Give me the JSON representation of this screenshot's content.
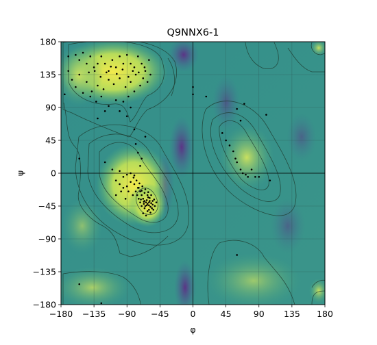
{
  "chart_data": {
    "type": "scatter",
    "title": "Q9NNX6-1",
    "xlabel": "φ",
    "ylabel": "ψ",
    "xlim": [
      -180,
      180
    ],
    "ylim": [
      -180,
      180
    ],
    "xticks": [
      -180,
      -135,
      -90,
      -45,
      0,
      45,
      90,
      135,
      180
    ],
    "yticks": [
      -180,
      -135,
      -90,
      -45,
      0,
      45,
      90,
      135,
      180
    ],
    "xtick_labels": [
      "−180",
      "−135",
      "−90",
      "−45",
      "0",
      "45",
      "90",
      "135",
      "180"
    ],
    "ytick_labels": [
      "−180",
      "−135",
      "−90",
      "−45",
      "0",
      "45",
      "90",
      "135",
      "180"
    ],
    "grid": true,
    "background": "density heatmap (viridis) with contour lines",
    "colors": {
      "low": "#5a2d82",
      "mid": "#3d9a8c",
      "high": "#e6e65a",
      "points": "#000000"
    },
    "points": [
      [
        -170,
        160
      ],
      [
        -160,
        162
      ],
      [
        -155,
        155
      ],
      [
        -150,
        165
      ],
      [
        -145,
        150
      ],
      [
        -140,
        160
      ],
      [
        -135,
        145
      ],
      [
        -130,
        150
      ],
      [
        -125,
        160
      ],
      [
        -120,
        150
      ],
      [
        -115,
        140
      ],
      [
        -110,
        155
      ],
      [
        -105,
        145
      ],
      [
        -100,
        160
      ],
      [
        -95,
        150
      ],
      [
        -90,
        162
      ],
      [
        -85,
        150
      ],
      [
        -80,
        145
      ],
      [
        -75,
        160
      ],
      [
        -70,
        150
      ],
      [
        -65,
        140
      ],
      [
        -60,
        155
      ],
      [
        -68,
        130
      ],
      [
        -72,
        120
      ],
      [
        -78,
        135
      ],
      [
        -85,
        125
      ],
      [
        -92,
        118
      ],
      [
        -100,
        130
      ],
      [
        -108,
        122
      ],
      [
        -115,
        128
      ],
      [
        -122,
        115
      ],
      [
        -130,
        120
      ],
      [
        -138,
        112
      ],
      [
        -145,
        125
      ],
      [
        -150,
        110
      ],
      [
        -155,
        135
      ],
      [
        -160,
        118
      ],
      [
        -165,
        128
      ],
      [
        -175,
        108
      ],
      [
        -170,
        140
      ],
      [
        -62,
        125
      ],
      [
        -58,
        135
      ],
      [
        -66,
        145
      ],
      [
        -74,
        138
      ],
      [
        -82,
        140
      ],
      [
        -88,
        132
      ],
      [
        -96,
        142
      ],
      [
        -104,
        136
      ],
      [
        -112,
        146
      ],
      [
        -118,
        138
      ],
      [
        -126,
        132
      ],
      [
        -134,
        140
      ],
      [
        -142,
        138
      ],
      [
        -80,
        112
      ],
      [
        -88,
        105
      ],
      [
        -95,
        98
      ],
      [
        -105,
        100
      ],
      [
        -115,
        92
      ],
      [
        -125,
        105
      ],
      [
        -132,
        98
      ],
      [
        -140,
        105
      ],
      [
        -120,
        85
      ],
      [
        -100,
        85
      ],
      [
        -90,
        78
      ],
      [
        -85,
        90
      ],
      [
        -130,
        75
      ],
      [
        -155,
        20
      ],
      [
        -80,
        60
      ],
      [
        -78,
        40
      ],
      [
        -65,
        50
      ],
      [
        -75,
        28
      ],
      [
        -70,
        20
      ],
      [
        -72,
        10
      ],
      [
        -120,
        15
      ],
      [
        -110,
        5
      ],
      [
        -100,
        3
      ],
      [
        -95,
        -5
      ],
      [
        -90,
        -2
      ],
      [
        -85,
        0
      ],
      [
        -80,
        -3
      ],
      [
        -105,
        -10
      ],
      [
        -100,
        -15
      ],
      [
        -95,
        -20
      ],
      [
        -90,
        -18
      ],
      [
        -85,
        -12
      ],
      [
        -80,
        -15
      ],
      [
        -75,
        -20
      ],
      [
        -72,
        -25
      ],
      [
        -70,
        -30
      ],
      [
        -68,
        -35
      ],
      [
        -66,
        -38
      ],
      [
        -64,
        -40
      ],
      [
        -62,
        -42
      ],
      [
        -60,
        -44
      ],
      [
        -58,
        -46
      ],
      [
        -56,
        -48
      ],
      [
        -65,
        -45
      ],
      [
        -67,
        -42
      ],
      [
        -63,
        -37
      ],
      [
        -61,
        -33
      ],
      [
        -59,
        -38
      ],
      [
        -57,
        -41
      ],
      [
        -55,
        -43
      ],
      [
        -60,
        -50
      ],
      [
        -62,
        -52
      ],
      [
        -66,
        -48
      ],
      [
        -70,
        -45
      ],
      [
        -72,
        -40
      ],
      [
        -74,
        -35
      ],
      [
        -76,
        -30
      ],
      [
        -78,
        -25
      ],
      [
        -82,
        -30
      ],
      [
        -88,
        -25
      ],
      [
        -92,
        -35
      ],
      [
        -98,
        -25
      ],
      [
        -105,
        -30
      ],
      [
        -68,
        -55
      ],
      [
        -64,
        -58
      ],
      [
        -58,
        -54
      ],
      [
        -54,
        -50
      ],
      [
        -52,
        -45
      ],
      [
        -50,
        -40
      ],
      [
        -53,
        -36
      ],
      [
        -57,
        -30
      ],
      [
        -61,
        -26
      ],
      [
        -65,
        -22
      ],
      [
        -69,
        -18
      ],
      [
        -73,
        -14
      ],
      [
        -77,
        -10
      ],
      [
        -81,
        -6
      ],
      [
        -60,
        -40
      ],
      [
        -63,
        -44
      ],
      [
        -67,
        -39
      ],
      [
        -71,
        -36
      ],
      [
        -55,
        -38
      ],
      [
        -59,
        -34
      ],
      [
        -62,
        -30
      ],
      [
        -66,
        -27
      ],
      [
        -70,
        -24
      ],
      [
        -74,
        -20
      ],
      [
        0,
        118
      ],
      [
        0,
        108
      ],
      [
        18,
        105
      ],
      [
        40,
        55
      ],
      [
        45,
        45
      ],
      [
        50,
        38
      ],
      [
        55,
        30
      ],
      [
        58,
        20
      ],
      [
        60,
        15
      ],
      [
        65,
        5
      ],
      [
        68,
        0
      ],
      [
        72,
        -2
      ],
      [
        75,
        -5
      ],
      [
        80,
        5
      ],
      [
        85,
        -5
      ],
      [
        90,
        -5
      ],
      [
        105,
        -10
      ],
      [
        60,
        88
      ],
      [
        65,
        72
      ],
      [
        70,
        95
      ],
      [
        100,
        80
      ],
      [
        60,
        -112
      ],
      [
        -155,
        -152
      ],
      [
        -125,
        -178
      ]
    ]
  }
}
